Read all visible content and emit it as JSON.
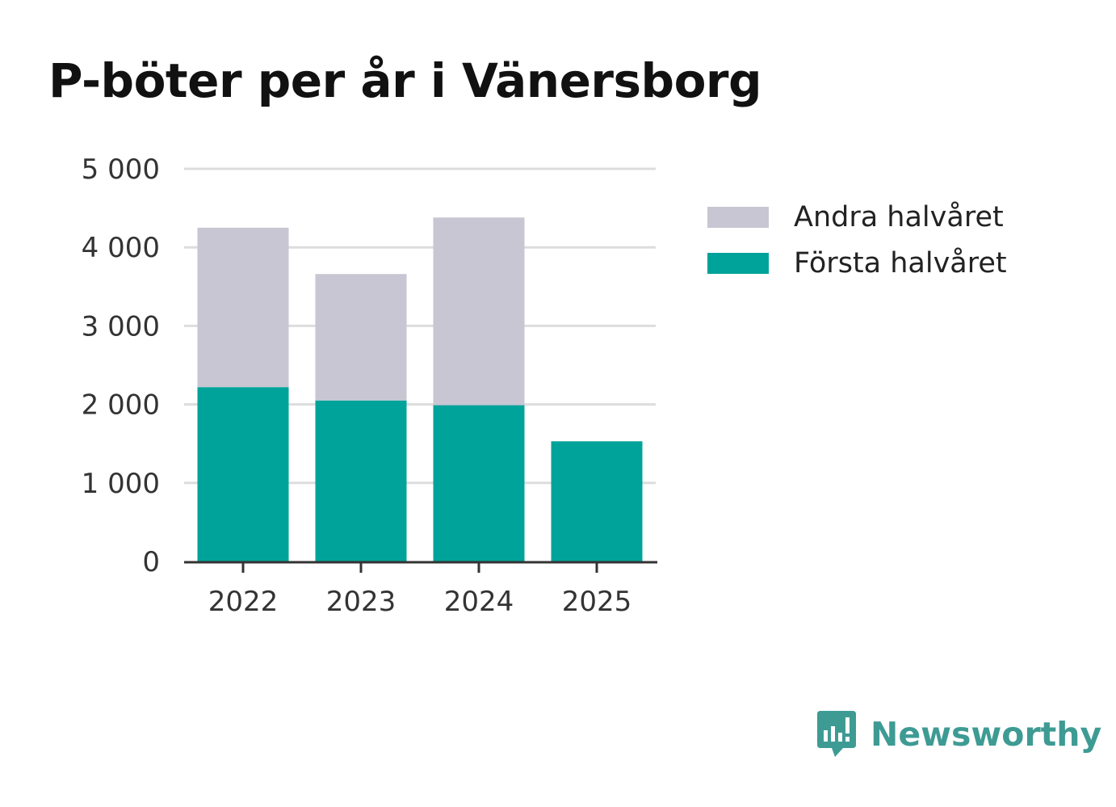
{
  "title": "P-böter per år i Vänersborg",
  "legend": [
    {
      "label": "Andra halvåret",
      "color": "#c7c6d2"
    },
    {
      "label": "Första halvåret",
      "color": "#00a39a"
    }
  ],
  "brand": {
    "name": "Newsworthy",
    "color": "#3e9b94",
    "icon": "newsworthy-logo-icon"
  },
  "chart_data": {
    "type": "bar",
    "stacked": true,
    "title": "P-böter per år i Vänersborg",
    "categories": [
      "2022",
      "2023",
      "2024",
      "2025"
    ],
    "series": [
      {
        "name": "Första halvåret",
        "color": "#00a39a",
        "values": [
          2220,
          2050,
          1990,
          1530
        ]
      },
      {
        "name": "Andra halvåret",
        "color": "#c7c6d2",
        "values": [
          2030,
          1610,
          2390,
          0
        ]
      }
    ],
    "ylim": [
      0,
      5000
    ],
    "yticks": [
      0,
      1000,
      2000,
      3000,
      4000,
      5000
    ],
    "ytick_labels": [
      "0",
      "1 000",
      "2 000",
      "3 000",
      "4 000",
      "5 000"
    ],
    "xlabel": "",
    "ylabel": "",
    "grid": true,
    "legend_position": "right"
  }
}
